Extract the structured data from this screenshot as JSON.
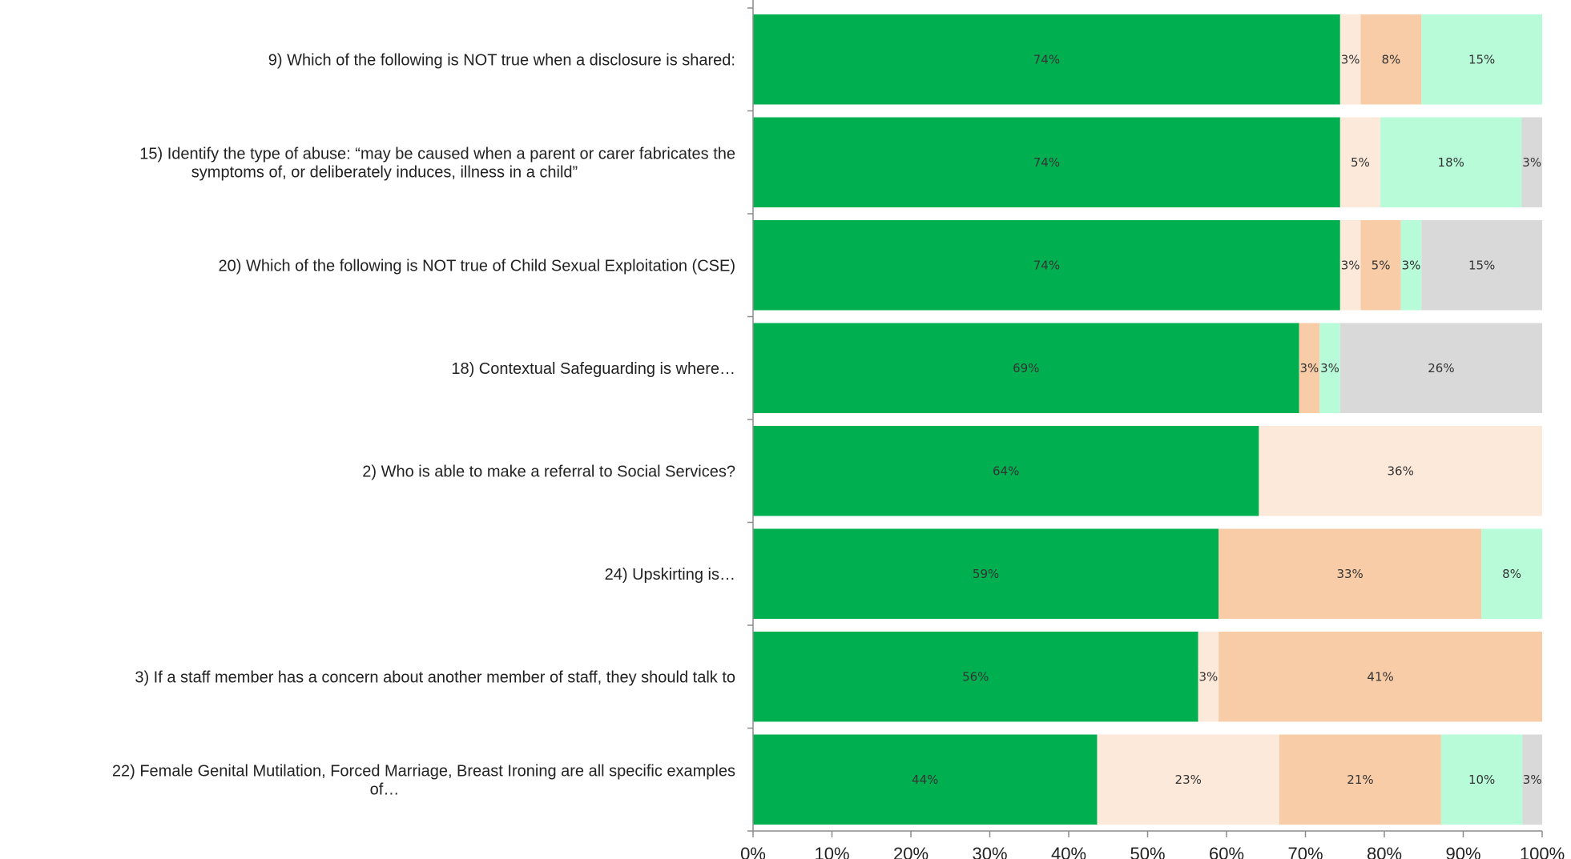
{
  "chart_data": {
    "type": "bar",
    "orientation": "horizontal",
    "stacked": true,
    "categories": [
      "9) Which of the following is NOT true when a disclosure is shared:",
      "15) Identify the type of abuse: “may be caused when a parent or carer fabricates the symptoms of, or deliberately induces, illness in a child”",
      "20) Which of the following is NOT true of Child Sexual Exploitation (CSE)",
      "18) Contextual Safeguarding is where…",
      "2) Who is able to make a referral to Social Services?",
      "24) Upskirting is…",
      "3) If a staff member has a concern about another member of staff, they should talk to",
      "22) Female Genital Mutilation, Forced Marriage, Breast Ironing are all specific examples of…"
    ],
    "category_lines": [
      [
        "9) Which of the following is NOT true when a disclosure is shared:"
      ],
      [
        "15) Identify the type of abuse: “may be caused when a parent or carer fabricates the",
        "symptoms of, or deliberately induces, illness in a child”"
      ],
      [
        "20) Which of the following is NOT true of Child Sexual Exploitation (CSE)"
      ],
      [
        "18) Contextual Safeguarding is where…"
      ],
      [
        "2) Who is able to make a referral to Social Services?"
      ],
      [
        "24) Upskirting is…"
      ],
      [
        "3) If a staff member has a concern about another member of staff, they should talk to"
      ],
      [
        "22) Female Genital Mutilation, Forced Marriage, Breast Ironing are all specific examples",
        "of…"
      ]
    ],
    "series": [
      {
        "color": "#00b050",
        "values": [
          74.4,
          74.4,
          74.4,
          69.2,
          64.1,
          59.0,
          56.4,
          43.6
        ],
        "labels": [
          "74%",
          "74%",
          "74%",
          "69%",
          "64%",
          "59%",
          "56%",
          "44%"
        ]
      },
      {
        "color": "#fde9d9",
        "values": [
          2.6,
          5.1,
          2.6,
          0,
          35.9,
          0,
          2.6,
          23.1
        ],
        "labels": [
          "3%",
          "5%",
          "3%",
          "",
          "36%",
          "",
          "3%",
          "23%"
        ]
      },
      {
        "color": "#f9cca8",
        "values": [
          7.7,
          0,
          5.1,
          2.6,
          0,
          33.3,
          41.0,
          20.5
        ],
        "labels": [
          "8%",
          "",
          "5%",
          "3%",
          "",
          "33%",
          "41%",
          "21%"
        ]
      },
      {
        "color": "#b7fbd9",
        "values": [
          15.3,
          17.9,
          2.6,
          2.6,
          0,
          7.7,
          0,
          10.3
        ],
        "labels": [
          "15%",
          "18%",
          "3%",
          "3%",
          "",
          "8%",
          "",
          "10%"
        ]
      },
      {
        "color": "#d9d9d9",
        "values": [
          0,
          2.6,
          15.3,
          25.6,
          0,
          0,
          0,
          2.5
        ],
        "labels": [
          "",
          "3%",
          "15%",
          "26%",
          "",
          "",
          "",
          "3%"
        ]
      }
    ],
    "x_ticks": [
      "0%",
      "10%",
      "20%",
      "30%",
      "40%",
      "50%",
      "60%",
      "70%",
      "80%",
      "90%",
      "100%"
    ],
    "xlim": [
      0,
      100
    ],
    "grid": false,
    "legend": "none"
  }
}
